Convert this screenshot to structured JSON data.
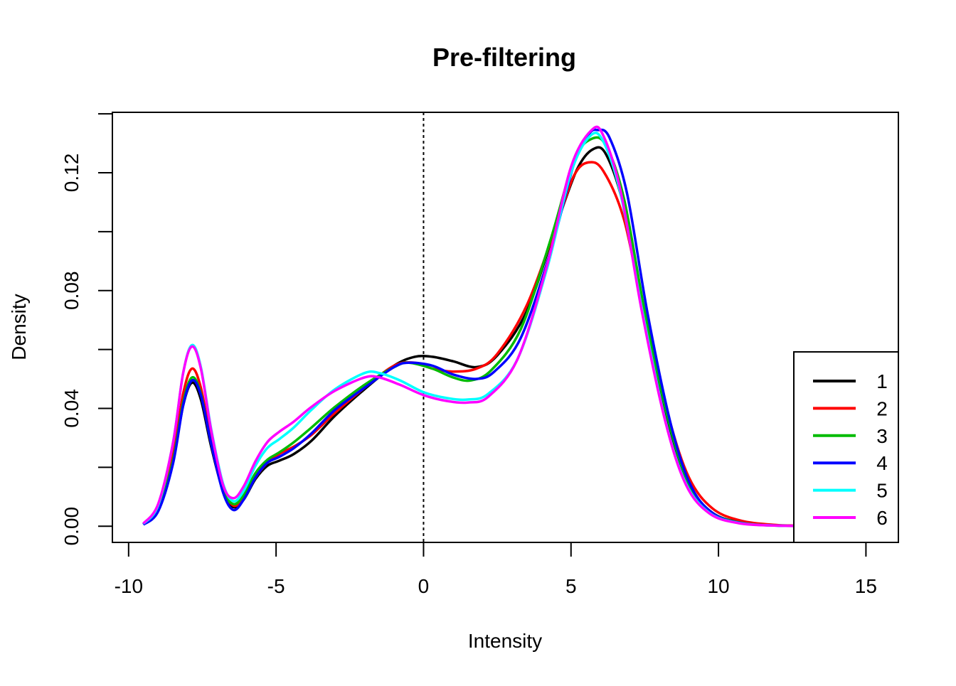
{
  "chart_data": {
    "type": "line",
    "title": "Pre-filtering",
    "xlabel": "Intensity",
    "ylabel": "Density",
    "xlim": [
      -10.55,
      16.1
    ],
    "ylim": [
      -0.0055,
      0.1405
    ],
    "x_ticks": [
      -10,
      -5,
      0,
      5,
      10,
      15
    ],
    "x_tick_labels": [
      "-10",
      "-5",
      "0",
      "5",
      "10",
      "15"
    ],
    "y_ticks": [
      0.0,
      0.02,
      0.04,
      0.06,
      0.08,
      0.1,
      0.12,
      0.14
    ],
    "y_tick_labels": [
      "0.00",
      "",
      "0.04",
      "",
      "0.08",
      "",
      "0.12",
      ""
    ],
    "reference_line": {
      "x": 0,
      "style": "dotted"
    },
    "grid": false,
    "legend_position": "bottom-right",
    "series": [
      {
        "name": "1",
        "color": "#000000",
        "points": [
          [
            -9.5,
            0.0008
          ],
          [
            -9.0,
            0.006
          ],
          [
            -8.5,
            0.022
          ],
          [
            -8.15,
            0.041
          ],
          [
            -7.85,
            0.0487
          ],
          [
            -7.55,
            0.043
          ],
          [
            -7.2,
            0.027
          ],
          [
            -6.8,
            0.012
          ],
          [
            -6.45,
            0.0065
          ],
          [
            -6.1,
            0.009
          ],
          [
            -5.7,
            0.016
          ],
          [
            -5.3,
            0.0205
          ],
          [
            -4.9,
            0.0222
          ],
          [
            -4.4,
            0.0245
          ],
          [
            -3.8,
            0.029
          ],
          [
            -3.0,
            0.0375
          ],
          [
            -2.0,
            0.0465
          ],
          [
            -1.0,
            0.0545
          ],
          [
            -0.3,
            0.0575
          ],
          [
            0.3,
            0.0575
          ],
          [
            1.0,
            0.056
          ],
          [
            1.8,
            0.054
          ],
          [
            2.5,
            0.058
          ],
          [
            3.5,
            0.073
          ],
          [
            4.5,
            0.102
          ],
          [
            5.2,
            0.121
          ],
          [
            5.75,
            0.128
          ],
          [
            6.2,
            0.126
          ],
          [
            6.8,
            0.108
          ],
          [
            7.5,
            0.071
          ],
          [
            8.3,
            0.035
          ],
          [
            9.0,
            0.014
          ],
          [
            9.8,
            0.0045
          ],
          [
            10.8,
            0.0012
          ],
          [
            12.0,
            0.0003
          ],
          [
            13.0,
            0.0001
          ]
        ]
      },
      {
        "name": "2",
        "color": "#ff0000",
        "points": [
          [
            -9.5,
            0.0008
          ],
          [
            -9.0,
            0.0065
          ],
          [
            -8.5,
            0.024
          ],
          [
            -8.15,
            0.045
          ],
          [
            -7.85,
            0.0535
          ],
          [
            -7.55,
            0.047
          ],
          [
            -7.2,
            0.029
          ],
          [
            -6.8,
            0.013
          ],
          [
            -6.45,
            0.007
          ],
          [
            -6.1,
            0.0095
          ],
          [
            -5.7,
            0.0165
          ],
          [
            -5.3,
            0.0215
          ],
          [
            -4.9,
            0.0245
          ],
          [
            -4.4,
            0.027
          ],
          [
            -3.8,
            0.031
          ],
          [
            -3.0,
            0.0385
          ],
          [
            -2.0,
            0.047
          ],
          [
            -1.0,
            0.0545
          ],
          [
            -0.3,
            0.0555
          ],
          [
            0.3,
            0.0535
          ],
          [
            1.0,
            0.0525
          ],
          [
            1.8,
            0.0535
          ],
          [
            2.5,
            0.0585
          ],
          [
            3.5,
            0.075
          ],
          [
            4.5,
            0.102
          ],
          [
            5.1,
            0.119
          ],
          [
            5.6,
            0.1235
          ],
          [
            6.1,
            0.1205
          ],
          [
            6.8,
            0.104
          ],
          [
            7.5,
            0.071
          ],
          [
            8.3,
            0.0375
          ],
          [
            9.0,
            0.0165
          ],
          [
            9.8,
            0.006
          ],
          [
            10.8,
            0.0018
          ],
          [
            12.0,
            0.0004
          ],
          [
            13.0,
            0.0001
          ]
        ]
      },
      {
        "name": "3",
        "color": "#00bb00",
        "points": [
          [
            -9.5,
            0.0007
          ],
          [
            -9.0,
            0.0058
          ],
          [
            -8.5,
            0.022
          ],
          [
            -8.15,
            0.042
          ],
          [
            -7.85,
            0.0505
          ],
          [
            -7.55,
            0.045
          ],
          [
            -7.2,
            0.028
          ],
          [
            -6.8,
            0.0125
          ],
          [
            -6.45,
            0.0075
          ],
          [
            -6.1,
            0.0105
          ],
          [
            -5.7,
            0.018
          ],
          [
            -5.3,
            0.0225
          ],
          [
            -4.9,
            0.025
          ],
          [
            -4.4,
            0.0285
          ],
          [
            -3.8,
            0.0335
          ],
          [
            -3.0,
            0.0405
          ],
          [
            -2.0,
            0.048
          ],
          [
            -1.0,
            0.054
          ],
          [
            -0.5,
            0.0555
          ],
          [
            0.3,
            0.0535
          ],
          [
            1.0,
            0.0505
          ],
          [
            1.6,
            0.0495
          ],
          [
            2.3,
            0.053
          ],
          [
            3.3,
            0.067
          ],
          [
            4.3,
            0.097
          ],
          [
            5.1,
            0.124
          ],
          [
            5.7,
            0.1315
          ],
          [
            6.2,
            0.129
          ],
          [
            6.8,
            0.111
          ],
          [
            7.5,
            0.073
          ],
          [
            8.3,
            0.036
          ],
          [
            9.0,
            0.0145
          ],
          [
            9.8,
            0.0045
          ],
          [
            10.8,
            0.0011
          ],
          [
            12.0,
            0.0002
          ],
          [
            13.0,
            0.0001
          ]
        ]
      },
      {
        "name": "4",
        "color": "#0000ff",
        "points": [
          [
            -9.5,
            0.0005
          ],
          [
            -9.0,
            0.005
          ],
          [
            -8.5,
            0.021
          ],
          [
            -8.15,
            0.041
          ],
          [
            -7.85,
            0.0495
          ],
          [
            -7.55,
            0.0445
          ],
          [
            -7.2,
            0.028
          ],
          [
            -6.8,
            0.0115
          ],
          [
            -6.45,
            0.0055
          ],
          [
            -6.1,
            0.009
          ],
          [
            -5.7,
            0.0165
          ],
          [
            -5.3,
            0.0215
          ],
          [
            -4.9,
            0.0235
          ],
          [
            -4.4,
            0.0265
          ],
          [
            -3.8,
            0.0315
          ],
          [
            -3.0,
            0.0395
          ],
          [
            -2.0,
            0.047
          ],
          [
            -1.0,
            0.054
          ],
          [
            -0.5,
            0.0555
          ],
          [
            0.3,
            0.0545
          ],
          [
            1.0,
            0.0515
          ],
          [
            1.8,
            0.05
          ],
          [
            2.4,
            0.0525
          ],
          [
            3.3,
            0.064
          ],
          [
            4.3,
            0.093
          ],
          [
            5.1,
            0.123
          ],
          [
            5.6,
            0.133
          ],
          [
            5.9,
            0.1345
          ],
          [
            6.3,
            0.132
          ],
          [
            6.9,
            0.113
          ],
          [
            7.6,
            0.072
          ],
          [
            8.4,
            0.034
          ],
          [
            9.1,
            0.013
          ],
          [
            9.9,
            0.0038
          ],
          [
            10.9,
            0.0009
          ],
          [
            12.0,
            0.0002
          ],
          [
            13.0,
            0.0001
          ]
        ]
      },
      {
        "name": "5",
        "color": "#00ffff",
        "points": [
          [
            -9.5,
            0.0008
          ],
          [
            -9.0,
            0.007
          ],
          [
            -8.5,
            0.028
          ],
          [
            -8.15,
            0.052
          ],
          [
            -7.85,
            0.0615
          ],
          [
            -7.55,
            0.054
          ],
          [
            -7.2,
            0.033
          ],
          [
            -6.8,
            0.0145
          ],
          [
            -6.45,
            0.0085
          ],
          [
            -6.1,
            0.012
          ],
          [
            -5.7,
            0.0205
          ],
          [
            -5.3,
            0.0265
          ],
          [
            -4.9,
            0.0295
          ],
          [
            -4.4,
            0.0335
          ],
          [
            -3.8,
            0.0395
          ],
          [
            -3.0,
            0.0465
          ],
          [
            -2.0,
            0.052
          ],
          [
            -1.5,
            0.052
          ],
          [
            -0.8,
            0.0495
          ],
          [
            0.0,
            0.0455
          ],
          [
            0.8,
            0.0435
          ],
          [
            1.5,
            0.043
          ],
          [
            2.2,
            0.045
          ],
          [
            3.2,
            0.057
          ],
          [
            4.2,
            0.088
          ],
          [
            5.0,
            0.12
          ],
          [
            5.65,
            0.1325
          ],
          [
            6.1,
            0.1305
          ],
          [
            6.7,
            0.112
          ],
          [
            7.4,
            0.074
          ],
          [
            8.2,
            0.036
          ],
          [
            8.9,
            0.0145
          ],
          [
            9.7,
            0.0045
          ],
          [
            10.7,
            0.0011
          ],
          [
            12.0,
            0.0002
          ],
          [
            13.0,
            0.0001
          ]
        ]
      },
      {
        "name": "6",
        "color": "#ff00ff",
        "points": [
          [
            -9.5,
            0.0009
          ],
          [
            -9.0,
            0.0075
          ],
          [
            -8.5,
            0.028
          ],
          [
            -8.15,
            0.052
          ],
          [
            -7.85,
            0.061
          ],
          [
            -7.55,
            0.0535
          ],
          [
            -7.2,
            0.0325
          ],
          [
            -6.8,
            0.014
          ],
          [
            -6.45,
            0.0095
          ],
          [
            -6.1,
            0.0135
          ],
          [
            -5.7,
            0.022
          ],
          [
            -5.3,
            0.0285
          ],
          [
            -4.9,
            0.032
          ],
          [
            -4.4,
            0.0355
          ],
          [
            -3.8,
            0.0405
          ],
          [
            -3.0,
            0.046
          ],
          [
            -2.0,
            0.0505
          ],
          [
            -1.5,
            0.0505
          ],
          [
            -0.8,
            0.048
          ],
          [
            0.0,
            0.0445
          ],
          [
            0.8,
            0.0425
          ],
          [
            1.5,
            0.042
          ],
          [
            2.2,
            0.044
          ],
          [
            3.2,
            0.057
          ],
          [
            4.2,
            0.089
          ],
          [
            5.0,
            0.122
          ],
          [
            5.7,
            0.1345
          ],
          [
            6.1,
            0.1325
          ],
          [
            6.7,
            0.113
          ],
          [
            7.4,
            0.073
          ],
          [
            8.2,
            0.0355
          ],
          [
            8.9,
            0.014
          ],
          [
            9.7,
            0.0043
          ],
          [
            10.7,
            0.001
          ],
          [
            12.0,
            0.0002
          ],
          [
            13.0,
            0.0001
          ]
        ]
      }
    ]
  }
}
